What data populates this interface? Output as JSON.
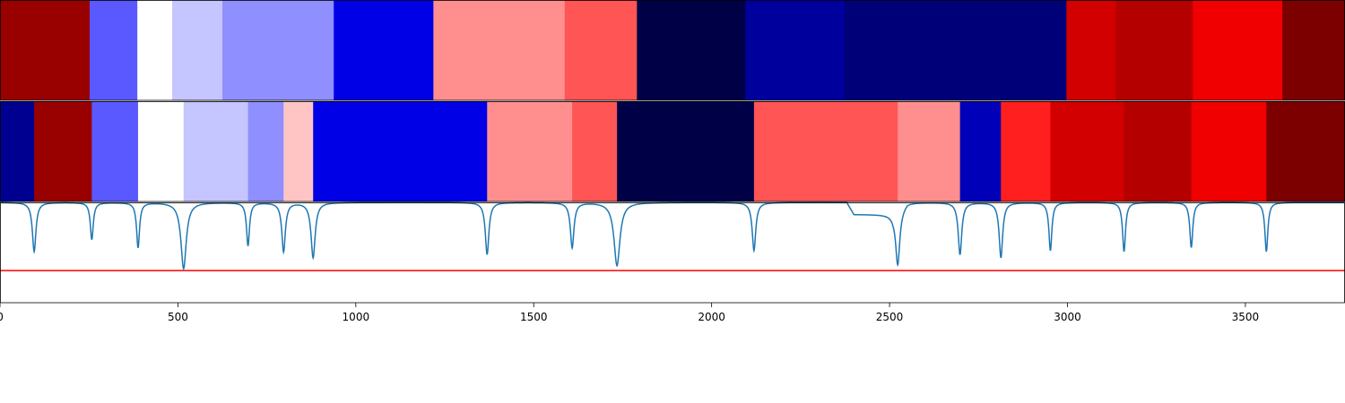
{
  "chart_data": {
    "type": "heatmap",
    "title": "",
    "xlabel": "",
    "ylabel": "",
    "xlim": [
      0,
      3780
    ],
    "x_ticks": [
      0,
      500,
      1000,
      1500,
      2000,
      2500,
      3000,
      3500
    ],
    "x_tick_labels": [
      "0",
      "500",
      "1000",
      "1500",
      "2000",
      "2500",
      "3000",
      "3500"
    ],
    "grid": false,
    "legend": "none",
    "colormap": "seismic",
    "segment_rows": [
      {
        "name": "",
        "segments": [
          {
            "start": 0,
            "end": 252,
            "color": "#990000"
          },
          {
            "start": 252,
            "end": 386,
            "color": "#5959ff"
          },
          {
            "start": 386,
            "end": 484,
            "color": "#ffffff"
          },
          {
            "start": 484,
            "end": 625,
            "color": "#c5c5ff"
          },
          {
            "start": 625,
            "end": 938,
            "color": "#8f8fff"
          },
          {
            "start": 938,
            "end": 1218,
            "color": "#0000e6"
          },
          {
            "start": 1218,
            "end": 1587,
            "color": "#ff8f8f"
          },
          {
            "start": 1587,
            "end": 1790,
            "color": "#ff5555"
          },
          {
            "start": 1790,
            "end": 2095,
            "color": "#000046"
          },
          {
            "start": 2095,
            "end": 2373,
            "color": "#00009c"
          },
          {
            "start": 2373,
            "end": 2997,
            "color": "#000078"
          },
          {
            "start": 2997,
            "end": 3136,
            "color": "#d20000"
          },
          {
            "start": 3136,
            "end": 3352,
            "color": "#b50000"
          },
          {
            "start": 3352,
            "end": 3604,
            "color": "#f00000"
          },
          {
            "start": 3604,
            "end": 3780,
            "color": "#7c0000"
          }
        ]
      },
      {
        "name": "",
        "segments": [
          {
            "start": 0,
            "end": 96,
            "color": "#000090"
          },
          {
            "start": 96,
            "end": 258,
            "color": "#990000"
          },
          {
            "start": 258,
            "end": 388,
            "color": "#5959ff"
          },
          {
            "start": 388,
            "end": 516,
            "color": "#ffffff"
          },
          {
            "start": 516,
            "end": 697,
            "color": "#c5c5ff"
          },
          {
            "start": 697,
            "end": 797,
            "color": "#8f8fff"
          },
          {
            "start": 797,
            "end": 880,
            "color": "#ffc5c5"
          },
          {
            "start": 880,
            "end": 1369,
            "color": "#0000e6"
          },
          {
            "start": 1369,
            "end": 1608,
            "color": "#ff8f8f"
          },
          {
            "start": 1608,
            "end": 1734,
            "color": "#ff5555"
          },
          {
            "start": 1734,
            "end": 2119,
            "color": "#000046"
          },
          {
            "start": 2119,
            "end": 2523,
            "color": "#ff5555"
          },
          {
            "start": 2523,
            "end": 2698,
            "color": "#ff8f8f"
          },
          {
            "start": 2698,
            "end": 2813,
            "color": "#0000b8"
          },
          {
            "start": 2813,
            "end": 2952,
            "color": "#ff1f1f"
          },
          {
            "start": 2952,
            "end": 3159,
            "color": "#d20000"
          },
          {
            "start": 3159,
            "end": 3348,
            "color": "#b50000"
          },
          {
            "start": 3348,
            "end": 3559,
            "color": "#f00000"
          },
          {
            "start": 3559,
            "end": 3780,
            "color": "#7c0000"
          }
        ]
      }
    ],
    "signal": {
      "name": "",
      "color": "#1f77b4",
      "baseline": 1.0,
      "ylim": [
        0.0,
        1.0
      ],
      "threshold": {
        "value": 0.32,
        "color": "#ff0000"
      },
      "dips": [
        {
          "x": 96,
          "depth": 0.49,
          "width": 6
        },
        {
          "x": 258,
          "depth": 0.37,
          "width": 5
        },
        {
          "x": 388,
          "depth": 0.45,
          "width": 5
        },
        {
          "x": 516,
          "depth": 0.66,
          "width": 9
        },
        {
          "x": 697,
          "depth": 0.43,
          "width": 5
        },
        {
          "x": 797,
          "depth": 0.49,
          "width": 6
        },
        {
          "x": 880,
          "depth": 0.55,
          "width": 7
        },
        {
          "x": 1369,
          "depth": 0.52,
          "width": 6
        },
        {
          "x": 1608,
          "depth": 0.45,
          "width": 6
        },
        {
          "x": 1734,
          "depth": 0.63,
          "width": 10
        },
        {
          "x": 2119,
          "depth": 0.48,
          "width": 6
        },
        {
          "x": 2523,
          "depth": 0.54,
          "width": 7
        },
        {
          "x": 2698,
          "depth": 0.52,
          "width": 6
        },
        {
          "x": 2813,
          "depth": 0.55,
          "width": 6
        },
        {
          "x": 2952,
          "depth": 0.48,
          "width": 5
        },
        {
          "x": 3159,
          "depth": 0.49,
          "width": 5
        },
        {
          "x": 3348,
          "depth": 0.45,
          "width": 5
        },
        {
          "x": 3559,
          "depth": 0.49,
          "width": 5
        }
      ],
      "shelf": {
        "start": 2400,
        "end": 2490,
        "depth": 0.12
      },
      "colors_note_removed": true
    }
  }
}
